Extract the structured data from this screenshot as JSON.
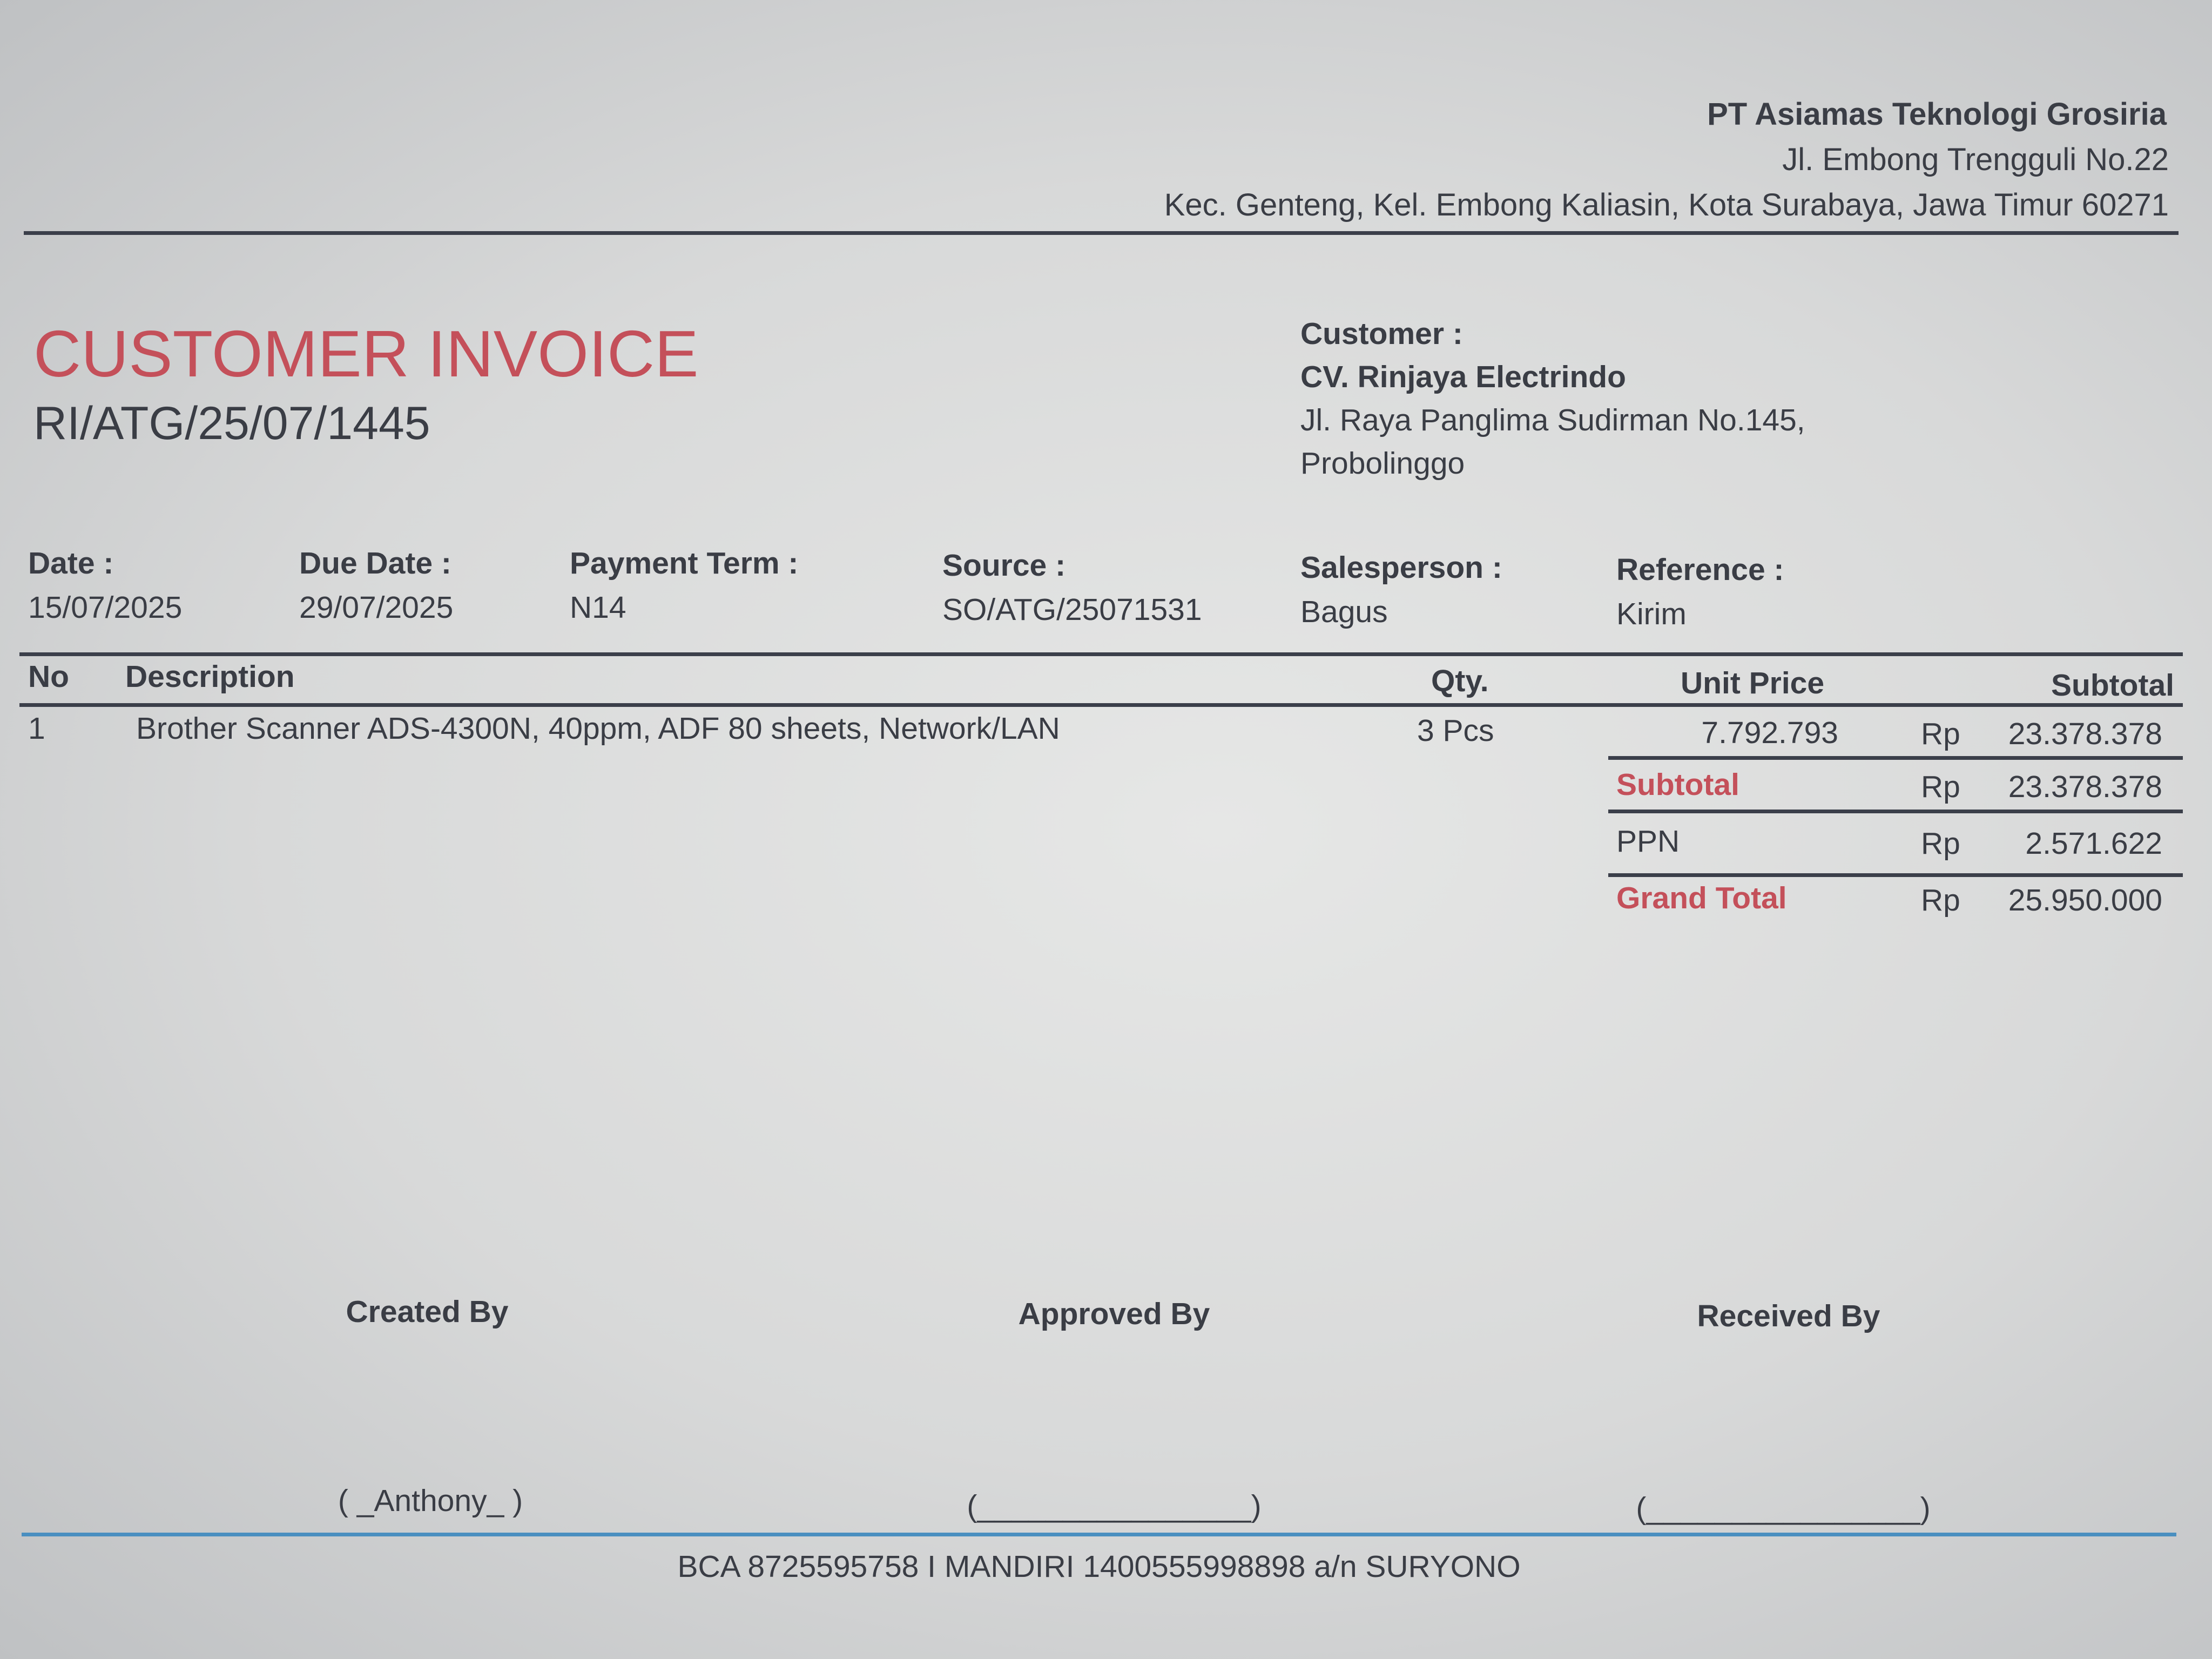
{
  "company": {
    "name": "PT Asiamas Teknologi Grosiria",
    "address1": "Jl. Embong Trengguli No.22",
    "address2": "Kec. Genteng, Kel. Embong Kaliasin, Kota Surabaya, Jawa Timur 60271"
  },
  "invoice": {
    "title": "CUSTOMER INVOICE",
    "number": "RI/ATG/25/07/1445"
  },
  "customer": {
    "label": "Customer :",
    "name": "CV. Rinjaya Electrindo",
    "address1": "Jl. Raya Panglima Sudirman No.145,",
    "address2": "Probolinggo"
  },
  "meta": [
    {
      "label": "Date :",
      "value": "15/07/2025"
    },
    {
      "label": "Due Date :",
      "value": "29/07/2025"
    },
    {
      "label": "Payment Term :",
      "value": "N14"
    },
    {
      "label": "Source :",
      "value": "SO/ATG/25071531"
    },
    {
      "label": "Salesperson :",
      "value": "Bagus"
    },
    {
      "label": "Reference :",
      "value": "Kirim"
    }
  ],
  "table": {
    "headers": {
      "no": "No",
      "description": "Description",
      "qty": "Qty.",
      "unit_price": "Unit Price",
      "subtotal": "Subtotal"
    },
    "rows": [
      {
        "no": "1",
        "description": "Brother Scanner ADS-4300N, 40ppm, ADF 80 sheets, Network/LAN",
        "qty": "3 Pcs",
        "unit_price": "7.792.793",
        "currency": "Rp",
        "subtotal": "23.378.378"
      }
    ]
  },
  "totals": [
    {
      "label": "Subtotal",
      "currency": "Rp",
      "value": "23.378.378"
    },
    {
      "label": "PPN",
      "currency": "Rp",
      "value": "2.571.622"
    },
    {
      "label": "Grand Total",
      "currency": "Rp",
      "value": "25.950.000"
    }
  ],
  "signatures": [
    {
      "label": "Created By",
      "name": "( _Anthony_ )"
    },
    {
      "label": "Approved By",
      "name": "(________________)"
    },
    {
      "label": "Received By",
      "name": "(________________)"
    }
  ],
  "footer": {
    "bank": "BCA 8725595758 I MANDIRI 1400555998898 a/n SURYONO"
  },
  "colors": {
    "accent": "#c4505a",
    "text": "#3a3d45",
    "footer_line": "#4a8fc0"
  }
}
